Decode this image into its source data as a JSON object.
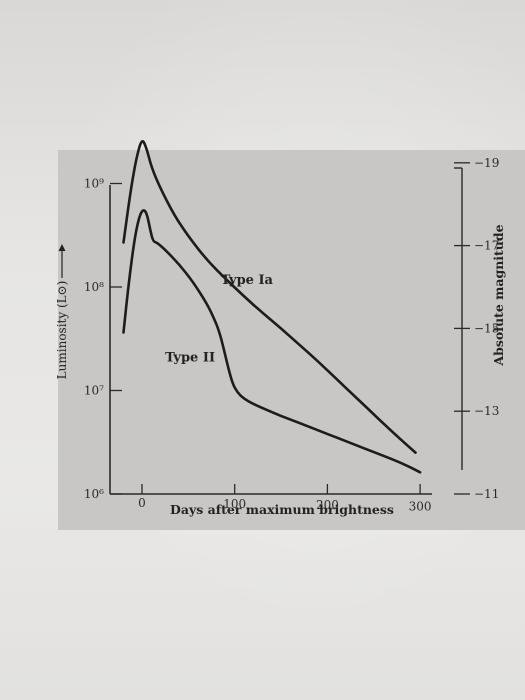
{
  "chart_data": {
    "type": "line",
    "xlabel": "Days after maximum brightness",
    "ylabel": "Luminosity (L⊙)",
    "y2label": "Absolute magnitude",
    "xlim": [
      -40,
      330
    ],
    "ylim_log10": [
      6,
      9.4
    ],
    "x_ticks": [
      0,
      100,
      200,
      300
    ],
    "y_ticks": [
      {
        "value": 9,
        "label": "10⁹"
      },
      {
        "value": 8,
        "label": "10⁸"
      },
      {
        "value": 7,
        "label": "10⁷"
      },
      {
        "value": 6,
        "label": "10⁶"
      }
    ],
    "y2_ticks": [
      {
        "label": "−19",
        "log_l": 9.2
      },
      {
        "label": "−17",
        "log_l": 8.4
      },
      {
        "label": "−15",
        "log_l": 7.6
      },
      {
        "label": "−13",
        "log_l": 6.8
      },
      {
        "label": "−11",
        "log_l": 6.0
      }
    ],
    "series": [
      {
        "name": "Type Ia",
        "label_at": {
          "x": 85,
          "y": 8.03
        },
        "x": [
          -20,
          -12,
          -6,
          0,
          5,
          10,
          20,
          35,
          50,
          70,
          90,
          110,
          130,
          150,
          170,
          190,
          210,
          230,
          250,
          270,
          295
        ],
        "y": [
          8.43,
          8.95,
          9.25,
          9.44,
          9.34,
          9.16,
          8.95,
          8.69,
          8.49,
          8.26,
          8.08,
          7.91,
          7.75,
          7.6,
          7.44,
          7.28,
          7.11,
          6.94,
          6.77,
          6.6,
          6.4
        ]
      },
      {
        "name": "Type II",
        "label_at": {
          "x": 25,
          "y": 7.28
        },
        "x": [
          -20,
          -14,
          -8,
          -3,
          1,
          5,
          9,
          12,
          16,
          25,
          40,
          55,
          70,
          78,
          83,
          88,
          93,
          98,
          103,
          110,
          120,
          140,
          160,
          180,
          200,
          220,
          240,
          260,
          280,
          300
        ],
        "y": [
          7.56,
          8.06,
          8.47,
          8.68,
          8.75,
          8.72,
          8.55,
          8.44,
          8.43,
          8.36,
          8.22,
          8.05,
          7.84,
          7.69,
          7.58,
          7.41,
          7.22,
          7.06,
          6.98,
          6.92,
          6.87,
          6.79,
          6.72,
          6.65,
          6.58,
          6.51,
          6.44,
          6.37,
          6.3,
          6.21
        ]
      }
    ]
  }
}
